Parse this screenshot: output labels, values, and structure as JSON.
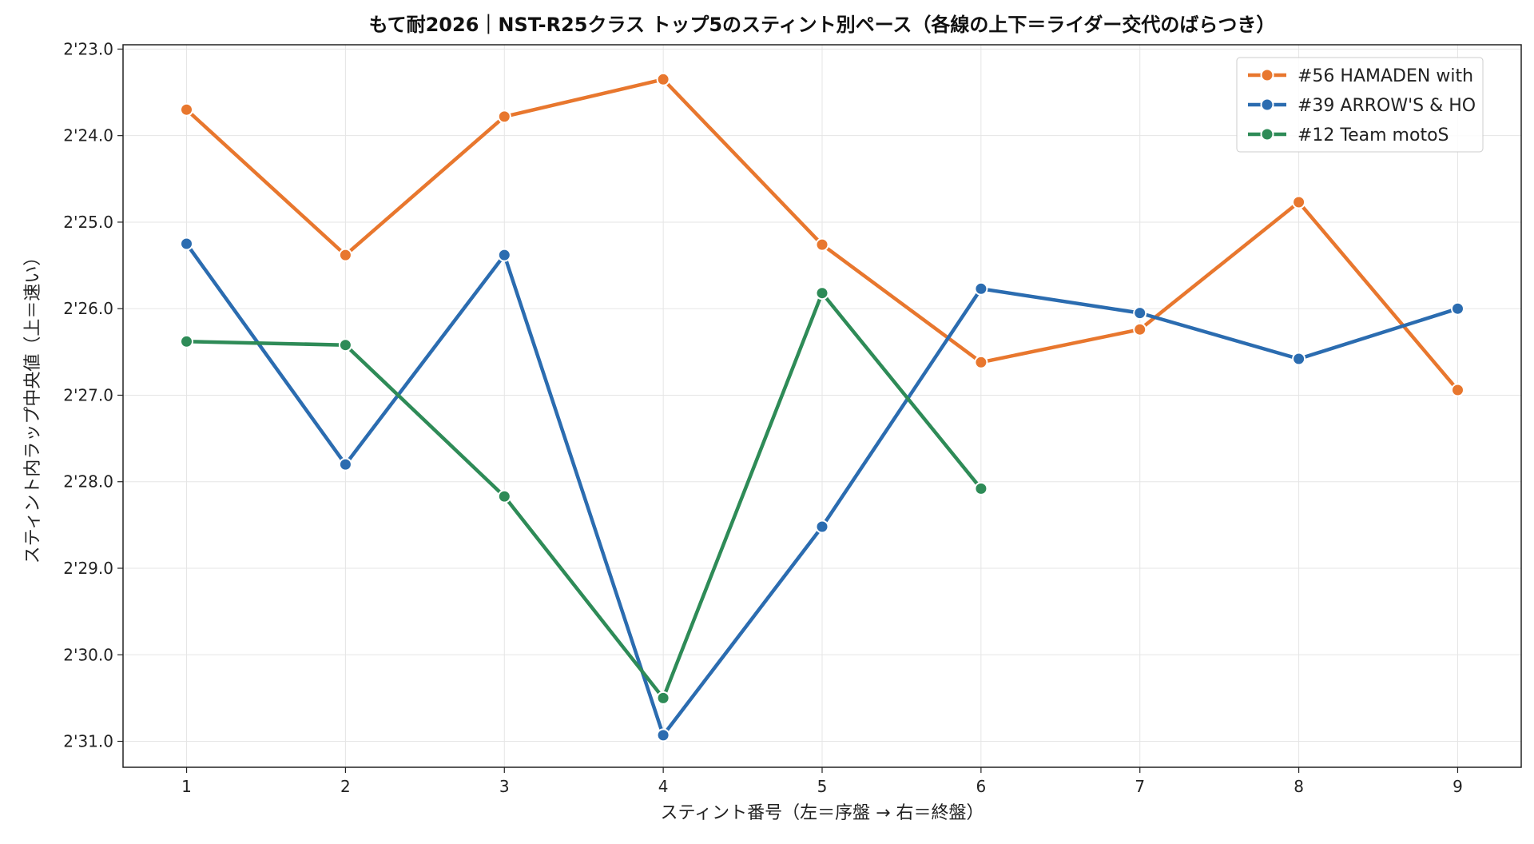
{
  "chart_data": {
    "type": "line",
    "title": "もて耐2026｜NST-R25クラス トップ5のスティント別ペース（各線の上下＝ライダー交代のばらつき）",
    "xlabel": "スティント番号（左＝序盤 → 右＝終盤）",
    "ylabel": "スティント内ラップ中央値（上＝速い）",
    "x_ticks": [
      "1",
      "2",
      "3",
      "4",
      "5",
      "6",
      "7",
      "8",
      "9"
    ],
    "x_range": [
      0.6,
      9.4
    ],
    "y_ticks": [
      "2'23.0",
      "2'24.0",
      "2'25.0",
      "2'26.0",
      "2'27.0",
      "2'28.0",
      "2'29.0",
      "2'30.0",
      "2'31.0"
    ],
    "y_tick_values": [
      143,
      144,
      145,
      146,
      147,
      148,
      149,
      150,
      151
    ],
    "y_range": [
      151.3,
      142.95
    ],
    "y_inverted": true,
    "grid": true,
    "legend_position": "top-right",
    "series": [
      {
        "name": "#56 HAMADEN with",
        "color": "#e8772e",
        "x": [
          1,
          2,
          3,
          4,
          5,
          6,
          7,
          8,
          9
        ],
        "values": [
          143.7,
          145.38,
          143.78,
          143.35,
          145.26,
          146.62,
          146.24,
          144.77,
          146.94
        ]
      },
      {
        "name": "#39 ARROW'S & HO",
        "color": "#2b6cb0",
        "x": [
          1,
          2,
          3,
          4,
          5,
          6,
          7,
          8,
          9
        ],
        "values": [
          145.25,
          147.8,
          145.38,
          150.93,
          148.52,
          145.77,
          146.05,
          146.58,
          146.0
        ]
      },
      {
        "name": "#12 Team motoS",
        "color": "#2e8b57",
        "x": [
          1,
          2,
          3,
          4,
          5,
          6
        ],
        "values": [
          146.38,
          146.42,
          148.17,
          150.5,
          145.82,
          148.08
        ]
      }
    ]
  }
}
